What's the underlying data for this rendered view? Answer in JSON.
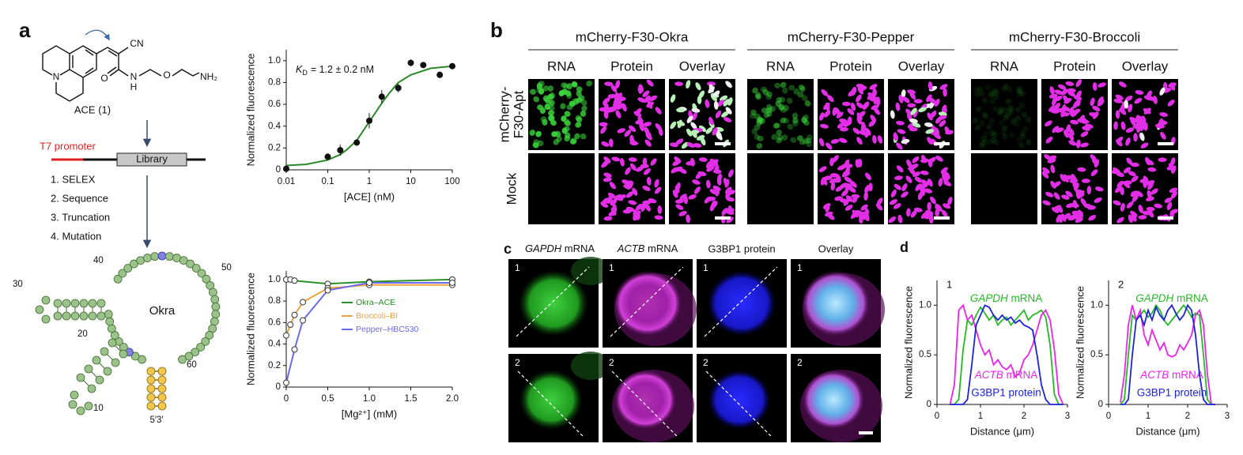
{
  "a": {
    "label": "a",
    "molecule": {
      "name": "ACE (1)",
      "groups": {
        "nitrile": "CN",
        "carbonyl": "O",
        "amide_n": "N",
        "amide_h": "H",
        "ether": "O",
        "amine": "NH₂",
        "ring_n": "N"
      }
    },
    "selection": {
      "promoter": "T7 promoter",
      "library": "Library",
      "steps": [
        "1. SELEX",
        "2. Sequence",
        "3. Truncation",
        "4. Mutation"
      ]
    },
    "aptamer": {
      "name": "Okra",
      "positions": [
        "10",
        "20",
        "30",
        "40",
        "50",
        "60"
      ],
      "ends": "5′3′"
    },
    "binding_chart": {
      "type": "scatter",
      "xlabel": "[ACE] (nM)",
      "ylabel": "Normalized fluorescence",
      "annotation": {
        "symbol": "K",
        "subscript": "D",
        "text": "= 1.2 ± 0.2 nM"
      },
      "xscale": "log",
      "xlim": [
        0.01,
        100
      ],
      "ylim": [
        0,
        1.1
      ],
      "xticks": [
        0.01,
        0.1,
        1,
        10,
        100
      ],
      "yticks": [
        0,
        0.2,
        0.4,
        0.6,
        0.8,
        {
          "value": 1,
          "label": "1.0"
        }
      ],
      "points": {
        "color": "#111111",
        "x": [
          0.01,
          0.1,
          0.2,
          0.5,
          1,
          2,
          5,
          10,
          20,
          50,
          100
        ],
        "y": [
          0.01,
          0.12,
          0.18,
          0.25,
          0.45,
          0.67,
          0.75,
          0.98,
          0.96,
          0.87,
          0.95
        ],
        "error": [
          0.01,
          0.03,
          0.05,
          0.03,
          0.07,
          0.06,
          0.04,
          0.03,
          0.01,
          0.03,
          0.01
        ]
      },
      "fit": {
        "color": "#2a8a2a",
        "x": [
          0.01,
          0.03,
          0.1,
          0.2,
          0.3,
          0.5,
          1,
          2,
          3,
          5,
          10,
          30,
          100
        ],
        "y": [
          0.04,
          0.05,
          0.09,
          0.14,
          0.19,
          0.27,
          0.44,
          0.61,
          0.7,
          0.8,
          0.87,
          0.93,
          0.95
        ]
      }
    },
    "mg_chart": {
      "type": "line",
      "xlabel": "[Mg²⁺] (mM)",
      "ylabel": "Normalized fluorescence",
      "xlim": [
        0,
        2
      ],
      "ylim": [
        0,
        1.08
      ],
      "xticks": [
        0,
        0.5,
        {
          "value": 1,
          "label": "1.0"
        },
        1.5,
        {
          "value": 2,
          "label": "2.0"
        }
      ],
      "yticks": [
        0,
        0.2,
        0.4,
        0.6,
        0.8,
        {
          "value": 1,
          "label": "1.0"
        }
      ],
      "series": [
        {
          "name": "Okra–ACE",
          "color": "#2a8f2a",
          "x": [
            0,
            0.05,
            0.1,
            0.5,
            1,
            2
          ],
          "values": [
            1.0,
            1.0,
            0.99,
            0.96,
            0.98,
            1.0
          ]
        },
        {
          "name": "Broccoli–BI",
          "color": "#f0a040",
          "x": [
            0,
            0.05,
            0.1,
            0.2,
            0.5,
            1,
            2
          ],
          "values": [
            0.48,
            0.58,
            0.67,
            0.79,
            0.92,
            0.95,
            0.95
          ]
        },
        {
          "name": "Pepper–HBC530",
          "color": "#6a6aee",
          "x": [
            0,
            0.1,
            0.2,
            0.5,
            1,
            2
          ],
          "values": [
            0.04,
            0.35,
            0.62,
            0.9,
            0.97,
            0.97
          ]
        }
      ]
    }
  },
  "b": {
    "label": "b",
    "constructs": [
      "mCherry-F30-Okra",
      "mCherry-F30-Pepper",
      "mCherry-F30-Broccoli"
    ],
    "channels": [
      "RNA",
      "Protein",
      "Overlay"
    ],
    "rows": [
      {
        "lines": [
          "mCherry-",
          "F30-Apt"
        ]
      },
      {
        "lines": [
          "Mock"
        ]
      }
    ]
  },
  "c": {
    "label": "c",
    "columns": [
      "GAPDH mRNA",
      "ACTB mRNA",
      "G3BP1 protein",
      "Overlay"
    ],
    "rows": [
      "1",
      "2"
    ]
  },
  "d": {
    "label": "d",
    "charts": [
      {
        "type": "line",
        "panel": "1",
        "xlabel": "Distance (μm)",
        "ylabel": "Normalized fluorescence",
        "xlim": [
          0,
          3
        ],
        "ylim": [
          0,
          1.25
        ],
        "xticks": [
          0,
          1,
          2,
          3
        ],
        "yticks": [
          0,
          0.5,
          {
            "value": 1,
            "label": "1.0"
          }
        ],
        "x": [
          0.3,
          0.4,
          0.5,
          0.6,
          0.7,
          0.8,
          0.9,
          1.0,
          1.1,
          1.2,
          1.3,
          1.4,
          1.5,
          1.6,
          1.7,
          1.8,
          1.9,
          2.0,
          2.1,
          2.2,
          2.3,
          2.4,
          2.5,
          2.6,
          2.7,
          2.8,
          2.9
        ],
        "series": [
          {
            "name": "GAPDH mRNA",
            "color": "#22bb22",
            "values": [
              0,
              0,
              0.05,
              0.55,
              0.85,
              0.8,
              0.9,
              0.98,
              0.92,
              0.85,
              0.9,
              0.8,
              0.85,
              0.88,
              0.8,
              0.85,
              0.9,
              0.95,
              0.85,
              0.9,
              0.92,
              0.95,
              0.88,
              0.6,
              0.1,
              0,
              0
            ]
          },
          {
            "name": "ACTB mRNA",
            "color": "#ee22ee",
            "values": [
              0,
              0.2,
              0.95,
              1.0,
              0.85,
              0.9,
              0.75,
              0.6,
              0.5,
              0.55,
              0.4,
              0.45,
              0.38,
              0.35,
              0.4,
              0.28,
              0.32,
              0.45,
              0.5,
              0.6,
              0.75,
              0.9,
              0.95,
              0.85,
              0.55,
              0.1,
              0
            ]
          },
          {
            "name": "G3BP1 protein",
            "color": "#1a22dd",
            "values": [
              0,
              0,
              0,
              0,
              0.05,
              0.4,
              0.8,
              0.9,
              1.0,
              0.98,
              0.9,
              0.85,
              0.9,
              0.85,
              0.88,
              0.82,
              0.85,
              0.8,
              0.78,
              0.75,
              0.5,
              0.2,
              0.05,
              0,
              0,
              0,
              0
            ]
          }
        ]
      },
      {
        "type": "line",
        "panel": "2",
        "xlabel": "Distance (μm)",
        "ylabel": "Normalized fluorescence",
        "xlim": [
          0,
          3
        ],
        "ylim": [
          0,
          1.25
        ],
        "xticks": [
          0,
          1,
          2,
          3
        ],
        "yticks": [
          0,
          0.5,
          {
            "value": 1,
            "label": "1.0"
          }
        ],
        "x": [
          0.3,
          0.4,
          0.5,
          0.6,
          0.7,
          0.8,
          0.9,
          1.0,
          1.1,
          1.2,
          1.3,
          1.4,
          1.5,
          1.6,
          1.7,
          1.8,
          1.9,
          2.0,
          2.1,
          2.2,
          2.3,
          2.4,
          2.5,
          2.6,
          2.7
        ],
        "series": [
          {
            "name": "GAPDH mRNA",
            "color": "#22bb22",
            "values": [
              0,
              0.05,
              0.5,
              0.9,
              0.85,
              0.9,
              0.95,
              0.88,
              0.92,
              1.0,
              0.95,
              0.85,
              0.8,
              0.85,
              0.9,
              0.95,
              1.0,
              0.95,
              0.88,
              0.92,
              0.9,
              0.5,
              0.05,
              0,
              0
            ]
          },
          {
            "name": "ACTB mRNA",
            "color": "#ee22ee",
            "values": [
              0.02,
              0.3,
              0.8,
              1.0,
              0.85,
              0.95,
              0.7,
              0.6,
              0.75,
              0.65,
              0.55,
              0.62,
              0.5,
              0.48,
              0.5,
              0.6,
              0.55,
              0.62,
              0.7,
              0.9,
              0.95,
              0.8,
              0.3,
              0,
              0
            ]
          },
          {
            "name": "G3BP1 protein",
            "color": "#1a22dd",
            "values": [
              0,
              0,
              0.05,
              0.5,
              0.85,
              0.9,
              0.8,
              0.95,
              0.85,
              0.98,
              0.9,
              0.85,
              0.95,
              1.0,
              0.92,
              0.85,
              0.9,
              1.0,
              0.95,
              0.7,
              0.3,
              0.05,
              0,
              0,
              0
            ]
          }
        ]
      }
    ]
  }
}
